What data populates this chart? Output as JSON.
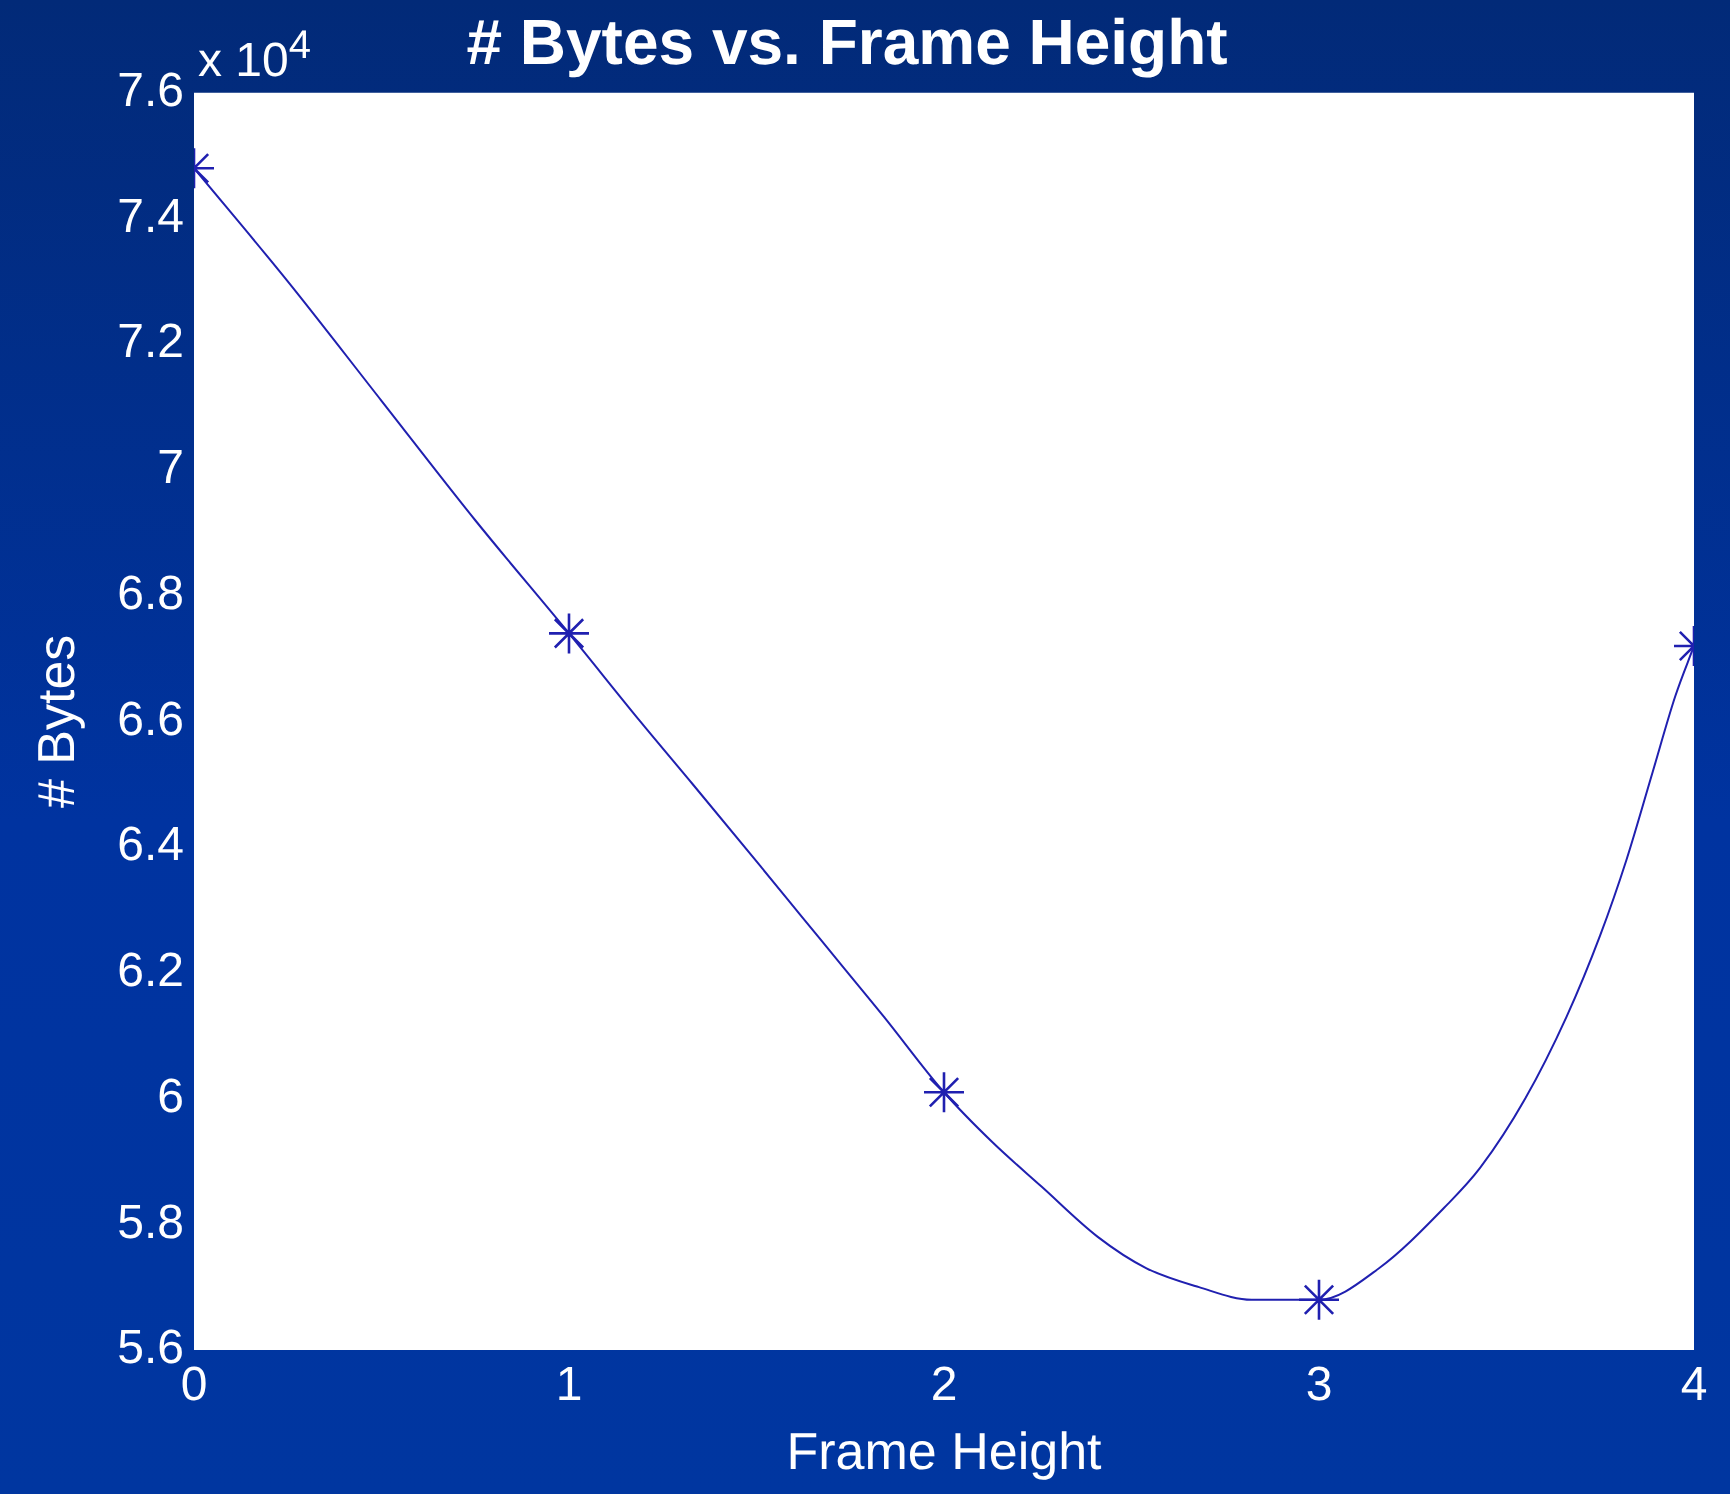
{
  "chart_data": {
    "type": "line",
    "title": "# Bytes vs. Frame Height",
    "xlabel": "Frame Height",
    "ylabel": "# Bytes",
    "annotations": [
      "x 10$^{4}$"
    ],
    "xlim": [
      0,
      4
    ],
    "ylim": [
      5.6,
      7.6
    ],
    "xticks": [
      0,
      1,
      2,
      3,
      4
    ],
    "yticks": [
      5.6,
      5.8,
      6,
      6.2,
      6.4,
      6.6,
      6.8,
      7,
      7.2,
      7.4,
      7.6
    ],
    "series": [
      {
        "color": "#2020b0",
        "x": [
          0,
          0.25,
          0.5,
          0.75,
          1,
          1.19,
          1.33,
          1.51,
          1.62,
          1.73,
          1.84,
          2,
          2.13,
          2.26,
          2.41,
          2.54,
          2.68,
          2.82,
          2.94,
          3,
          3.16,
          3.34,
          3.43,
          3.55,
          3.66,
          3.75,
          3.82,
          3.89,
          3.95,
          4
        ],
        "values": [
          7.48,
          7.3,
          7.11,
          6.92,
          6.74,
          6.6,
          6.5,
          6.37,
          6.29,
          6.21,
          6.13,
          6.01,
          5.93,
          5.86,
          5.78,
          5.73,
          5.7,
          5.68,
          5.68,
          5.68,
          5.73,
          5.83,
          5.89,
          6.0,
          6.13,
          6.26,
          6.38,
          6.52,
          6.64,
          6.72
        ]
      },
      {
        "type": "scatter",
        "color": "#2020b0",
        "marker": "cross",
        "x": [
          0,
          1,
          2,
          3,
          4
        ],
        "values": [
          7.48,
          6.74,
          6.01,
          5.68,
          6.72
        ]
      }
    ]
  }
}
